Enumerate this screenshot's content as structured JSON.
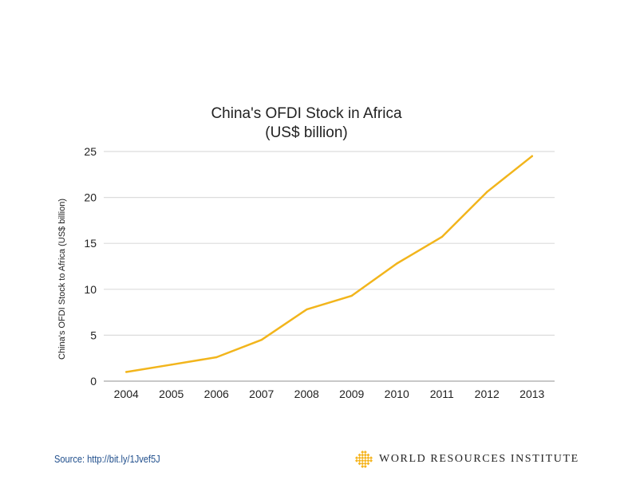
{
  "chart_data": {
    "type": "line",
    "title": "China's OFDI Stock in Africa",
    "subtitle": "(US$ billion)",
    "xlabel": "",
    "ylabel": "China's OFDI Stock to Africa (US$ billion)",
    "categories": [
      "2004",
      "2005",
      "2006",
      "2007",
      "2008",
      "2009",
      "2010",
      "2011",
      "2012",
      "2013"
    ],
    "series": [
      {
        "name": "China's OFDI Stock in Africa",
        "color": "#f2b51c",
        "values": [
          1.0,
          1.8,
          2.6,
          4.5,
          7.8,
          9.3,
          12.8,
          15.7,
          20.6,
          24.5
        ]
      }
    ],
    "ylim": [
      0,
      25
    ],
    "yticks": [
      "0",
      "5",
      "10",
      "15",
      "20",
      "25"
    ],
    "grid": true,
    "legend": "none"
  },
  "footer": {
    "source": "Source: http://bit.ly/1Jvef5J",
    "logo_text": "WORLD RESOURCES INSTITUTE",
    "logo_icon": "wri-knot-icon",
    "logo_color": "#f5b41e",
    "source_color": "#1f4e8c"
  }
}
